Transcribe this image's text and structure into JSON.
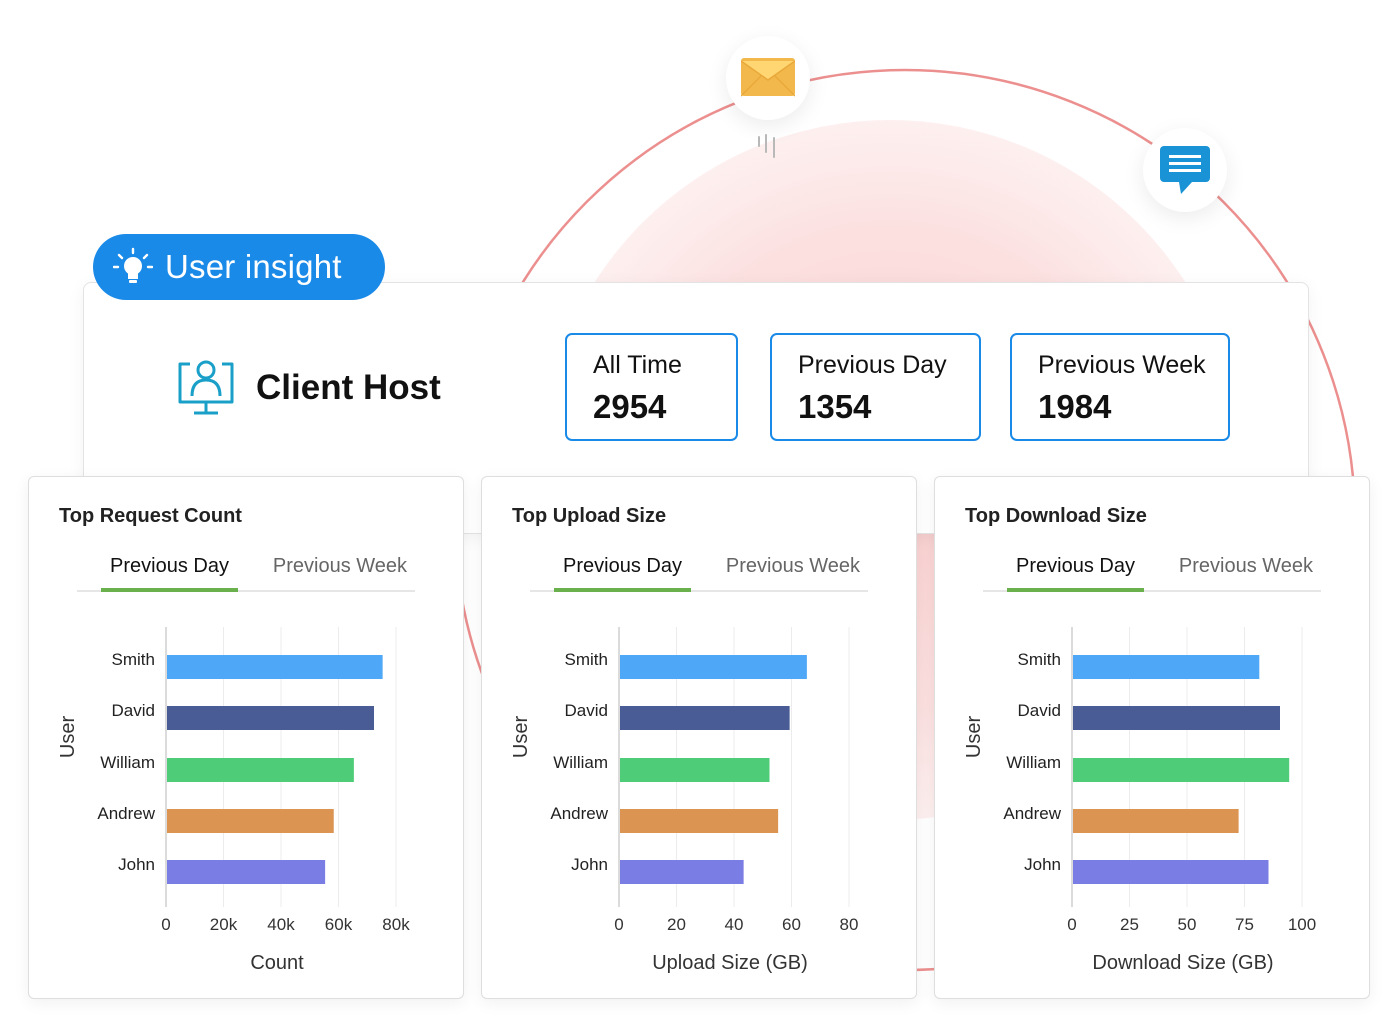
{
  "badge": {
    "label": "User insight",
    "icon": "lightbulb-icon"
  },
  "host": {
    "name": "Client Host",
    "icon": "monitor-user-icon"
  },
  "stats": [
    {
      "label": "All Time",
      "value": "2954"
    },
    {
      "label": "Previous Day",
      "value": "1354"
    },
    {
      "label": "Previous Week",
      "value": "1984"
    }
  ],
  "decor_icons": [
    "mail-icon",
    "chat-icon"
  ],
  "colors": {
    "accent": "#1a8ae8",
    "tab_active": "#6ab04c",
    "bar_smith": "#4ea7f7",
    "bar_david": "#4a5c96",
    "bar_william": "#4fcc78",
    "bar_andrew": "#dc9453",
    "bar_john": "#7a7ee4"
  },
  "chart_data": [
    {
      "type": "bar",
      "orientation": "horizontal",
      "title": "Top Request Count",
      "tabs": [
        "Previous Day",
        "Previous Week"
      ],
      "active_tab": "Previous Day",
      "categories": [
        "Smith",
        "David",
        "William",
        "Andrew",
        "John"
      ],
      "values": [
        75000,
        72000,
        65000,
        58000,
        55000
      ],
      "xlabel": "Count",
      "ylabel": "User",
      "xlim": [
        0,
        80000
      ],
      "xticks": [
        "0",
        "20k",
        "40k",
        "60k",
        "80k"
      ],
      "grid": true
    },
    {
      "type": "bar",
      "orientation": "horizontal",
      "title": "Top Upload Size",
      "tabs": [
        "Previous Day",
        "Previous Week"
      ],
      "active_tab": "Previous Day",
      "categories": [
        "Smith",
        "David",
        "William",
        "Andrew",
        "John"
      ],
      "values": [
        65,
        59,
        52,
        55,
        43
      ],
      "xlabel": "Upload Size (GB)",
      "ylabel": "User",
      "xlim": [
        0,
        80
      ],
      "xticks": [
        "0",
        "20",
        "40",
        "60",
        "80"
      ],
      "grid": true
    },
    {
      "type": "bar",
      "orientation": "horizontal",
      "title": "Top Download Size",
      "tabs": [
        "Previous Day",
        "Previous Week"
      ],
      "active_tab": "Previous Day",
      "categories": [
        "Smith",
        "David",
        "William",
        "Andrew",
        "John"
      ],
      "values": [
        81,
        90,
        94,
        72,
        85
      ],
      "xlabel": "Download Size (GB)",
      "ylabel": "User",
      "xlim": [
        0,
        100
      ],
      "xticks": [
        "0",
        "25",
        "50",
        "75",
        "100"
      ],
      "grid": true
    }
  ]
}
